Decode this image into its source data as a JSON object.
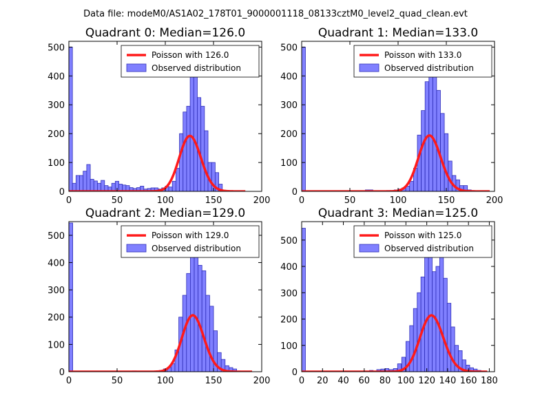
{
  "figure": {
    "suptitle": "Data file: modeM0/AS1A02_178T01_9000001118_08133cztM0_level2_quad_clean.evt"
  },
  "colors": {
    "bar_fill": "#8080ff",
    "bar_stroke": "#2e2eb8",
    "poisson_line": "#ff1a1a",
    "axis": "#000000"
  },
  "chart_data": [
    {
      "type": "bar",
      "title": "Quadrant 0: Median=126.0",
      "xlim": [
        0,
        200
      ],
      "ylim": [
        0,
        520
      ],
      "xticks": [
        0,
        50,
        100,
        150,
        200
      ],
      "yticks": [
        0,
        100,
        200,
        300,
        400,
        500
      ],
      "bin_width": 3.7,
      "series": [
        {
          "name": "Observed distribution",
          "bins": [
            [
              0,
              500
            ],
            [
              3.7,
              28
            ],
            [
              7.4,
              55
            ],
            [
              11.1,
              55
            ],
            [
              14.8,
              70
            ],
            [
              18.5,
              93
            ],
            [
              22.2,
              42
            ],
            [
              25.9,
              36
            ],
            [
              29.6,
              28
            ],
            [
              33.3,
              38
            ],
            [
              37,
              20
            ],
            [
              40.7,
              15
            ],
            [
              44.4,
              28
            ],
            [
              48.1,
              35
            ],
            [
              51.8,
              25
            ],
            [
              55.5,
              22
            ],
            [
              59.2,
              20
            ],
            [
              62.9,
              13
            ],
            [
              66.6,
              10
            ],
            [
              70.3,
              13
            ],
            [
              74,
              18
            ],
            [
              77.7,
              8
            ],
            [
              81.4,
              10
            ],
            [
              85.1,
              12
            ],
            [
              88.8,
              12
            ],
            [
              92.5,
              8
            ],
            [
              96.2,
              12
            ],
            [
              99.9,
              18
            ],
            [
              103.6,
              15
            ],
            [
              107.3,
              35
            ],
            [
              111,
              80
            ],
            [
              114.7,
              200
            ],
            [
              118.4,
              275
            ],
            [
              122.1,
              295
            ],
            [
              125.8,
              430
            ],
            [
              129.5,
              400
            ],
            [
              133.2,
              325
            ],
            [
              136.9,
              295
            ],
            [
              140.6,
              210
            ],
            [
              144.3,
              100
            ],
            [
              148,
              100
            ],
            [
              151.7,
              65
            ],
            [
              155.4,
              25
            ],
            [
              159.1,
              3
            ],
            [
              162.8,
              2
            ]
          ]
        },
        {
          "name": "Poisson with 126.0",
          "mean": 126.0,
          "scale": 5.41,
          "x_range": [
            0,
            183
          ]
        }
      ],
      "legend": {
        "location": "upper-right",
        "entries": [
          "Poisson with 126.0",
          "Observed distribution"
        ]
      }
    },
    {
      "type": "bar",
      "title": "Quadrant 1: Median=133.0",
      "xlim": [
        0,
        200
      ],
      "ylim": [
        0,
        520
      ],
      "xticks": [
        0,
        50,
        100,
        150,
        200
      ],
      "yticks": [
        0,
        100,
        200,
        300,
        400,
        500
      ],
      "bin_width": 3.9,
      "series": [
        {
          "name": "Observed distribution",
          "bins": [
            [
              0,
              500
            ],
            [
              66,
              5
            ],
            [
              70,
              5
            ],
            [
              88,
              3
            ],
            [
              92,
              2
            ],
            [
              96,
              5
            ],
            [
              100,
              8
            ],
            [
              104,
              12
            ],
            [
              108,
              18
            ],
            [
              112,
              35
            ],
            [
              116,
              80
            ],
            [
              120,
              195
            ],
            [
              124,
              280
            ],
            [
              128,
              380
            ],
            [
              132,
              480
            ],
            [
              136,
              440
            ],
            [
              140,
              350
            ],
            [
              144,
              270
            ],
            [
              148,
              200
            ],
            [
              152,
              105
            ],
            [
              156,
              55
            ],
            [
              160,
              40
            ],
            [
              164,
              20
            ],
            [
              168,
              20
            ],
            [
              172,
              5
            ],
            [
              176,
              3
            ]
          ]
        },
        {
          "name": "Poisson with 133.0",
          "mean": 133.0,
          "scale": 5.6,
          "x_range": [
            0,
            195
          ]
        }
      ],
      "legend": {
        "location": "upper-right",
        "entries": [
          "Poisson with 133.0",
          "Observed distribution"
        ]
      }
    },
    {
      "type": "bar",
      "title": "Quadrant 2: Median=129.0",
      "xlim": [
        0,
        200
      ],
      "ylim": [
        0,
        550
      ],
      "xticks": [
        0,
        50,
        100,
        150,
        200
      ],
      "yticks": [
        0,
        100,
        200,
        300,
        400,
        500
      ],
      "bin_width": 4.0,
      "series": [
        {
          "name": "Observed distribution",
          "bins": [
            [
              0,
              545
            ],
            [
              66,
              3
            ],
            [
              94,
              5
            ],
            [
              98,
              10
            ],
            [
              102,
              15
            ],
            [
              106,
              30
            ],
            [
              110,
              80
            ],
            [
              114,
              200
            ],
            [
              118,
              280
            ],
            [
              122,
              360
            ],
            [
              126,
              420
            ],
            [
              130,
              525
            ],
            [
              134,
              390
            ],
            [
              138,
              370
            ],
            [
              142,
              280
            ],
            [
              146,
              240
            ],
            [
              150,
              150
            ],
            [
              154,
              70
            ],
            [
              158,
              45
            ],
            [
              162,
              22
            ],
            [
              166,
              15
            ],
            [
              170,
              10
            ],
            [
              174,
              3
            ]
          ]
        },
        {
          "name": "Poisson with 129.0",
          "mean": 129.0,
          "scale": 5.89,
          "x_range": [
            0,
            190
          ]
        }
      ],
      "legend": {
        "location": "upper-right",
        "entries": [
          "Poisson with 129.0",
          "Observed distribution"
        ]
      }
    },
    {
      "type": "bar",
      "title": "Quadrant 3: Median=125.0",
      "xlim": [
        0,
        185
      ],
      "ylim": [
        0,
        570
      ],
      "xticks": [
        0,
        20,
        40,
        60,
        80,
        100,
        120,
        140,
        160,
        180
      ],
      "yticks": [
        0,
        100,
        200,
        300,
        400,
        500
      ],
      "bin_width": 3.6,
      "series": [
        {
          "name": "Observed distribution",
          "bins": [
            [
              0,
              545
            ],
            [
              65,
              5
            ],
            [
              72,
              8
            ],
            [
              76,
              10
            ],
            [
              80,
              12
            ],
            [
              84,
              8
            ],
            [
              88,
              12
            ],
            [
              92,
              30
            ],
            [
              96,
              55
            ],
            [
              100,
              115
            ],
            [
              103.6,
              175
            ],
            [
              107.2,
              240
            ],
            [
              110.8,
              300
            ],
            [
              114.4,
              360
            ],
            [
              118,
              435
            ],
            [
              121.6,
              530
            ],
            [
              125.2,
              380
            ],
            [
              128.8,
              400
            ],
            [
              132.4,
              440
            ],
            [
              136,
              355
            ],
            [
              139.6,
              260
            ],
            [
              143.2,
              170
            ],
            [
              146.8,
              100
            ],
            [
              150.4,
              80
            ],
            [
              154,
              45
            ],
            [
              157.6,
              25
            ],
            [
              161.2,
              15
            ],
            [
              164.8,
              10
            ],
            [
              168.4,
              5
            ],
            [
              172,
              3
            ]
          ]
        },
        {
          "name": "Poisson with 125.0",
          "mean": 125.0,
          "scale": 6.0,
          "x_range": [
            0,
            178
          ]
        }
      ],
      "legend": {
        "location": "upper-right",
        "entries": [
          "Poisson with 125.0",
          "Observed distribution"
        ]
      }
    }
  ]
}
